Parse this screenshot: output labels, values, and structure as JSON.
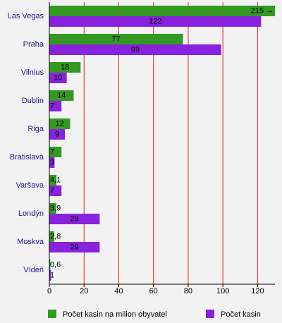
{
  "chart_data": {
    "type": "hbar",
    "categories": [
      "Las Vegas",
      "Praha",
      "Vilnius",
      "Dublin",
      "Riga",
      "Bratislava",
      "Varšava",
      "Londýn",
      "Moskva",
      "Vídeň"
    ],
    "series": [
      {
        "name": "Počet kasin na milion obyvatel",
        "color": "#339922",
        "values": [
          215,
          77,
          18,
          14,
          12,
          7,
          4.1,
          3.9,
          2.8,
          0.6
        ],
        "value_labels": [
          "215 →",
          "77",
          "18",
          "14",
          "12",
          "7",
          "4,1",
          "3,9",
          "2,8",
          "0,6"
        ]
      },
      {
        "name": "Počet kasin",
        "color": "#8822dd",
        "values": [
          122,
          99,
          10,
          7,
          9,
          3,
          7,
          29,
          29,
          1
        ]
      }
    ],
    "xlim": [
      0,
      130
    ],
    "xticks": [
      0,
      20,
      40,
      60,
      80,
      100,
      120
    ],
    "grid": true,
    "legend": "bottom"
  }
}
